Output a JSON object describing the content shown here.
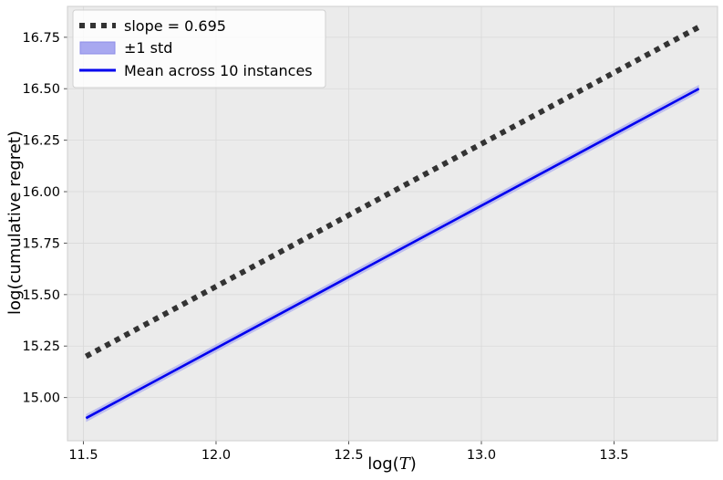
{
  "chart_data": {
    "type": "line",
    "xlabel": "log(T)",
    "xlabel_parts": {
      "prefix": "log(",
      "var": "T",
      "suffix": ")"
    },
    "ylabel": "log(cumulative regret)",
    "xlim": [
      11.44,
      13.89
    ],
    "ylim": [
      14.79,
      16.9
    ],
    "xticks": [
      11.5,
      12.0,
      12.5,
      13.0,
      13.5
    ],
    "xtick_labels": [
      "11.5",
      "12.0",
      "12.5",
      "13.0",
      "13.5"
    ],
    "yticks": [
      15.0,
      15.25,
      15.5,
      15.75,
      16.0,
      16.25,
      16.5,
      16.75
    ],
    "ytick_labels": [
      "15.00",
      "15.25",
      "15.50",
      "15.75",
      "16.00",
      "16.25",
      "16.50",
      "16.75"
    ],
    "grid": true,
    "legend_position": "top-left",
    "background": "#ebebeb",
    "series": [
      {
        "name": "slope = 0.695",
        "style": "dotted",
        "color": "#333333",
        "x": [
          11.51,
          13.82
        ],
        "y": [
          15.2,
          16.8
        ]
      },
      {
        "name": "Mean across 10 instances",
        "style": "solid",
        "color": "#0000ee",
        "x": [
          11.51,
          13.82
        ],
        "y": [
          14.9,
          16.5
        ],
        "band": {
          "name": "±1 std",
          "color": "#9999f0",
          "lower": [
            14.89,
            16.49
          ],
          "upper": [
            14.91,
            16.51
          ]
        }
      }
    ],
    "legend": [
      {
        "label": "slope = 0.695",
        "kind": "dotted-line",
        "color": "#333333"
      },
      {
        "label": "±1 std",
        "kind": "patch",
        "color": "#a8a8f0"
      },
      {
        "label": "Mean across 10 instances",
        "kind": "line",
        "color": "#0000ee"
      }
    ]
  }
}
